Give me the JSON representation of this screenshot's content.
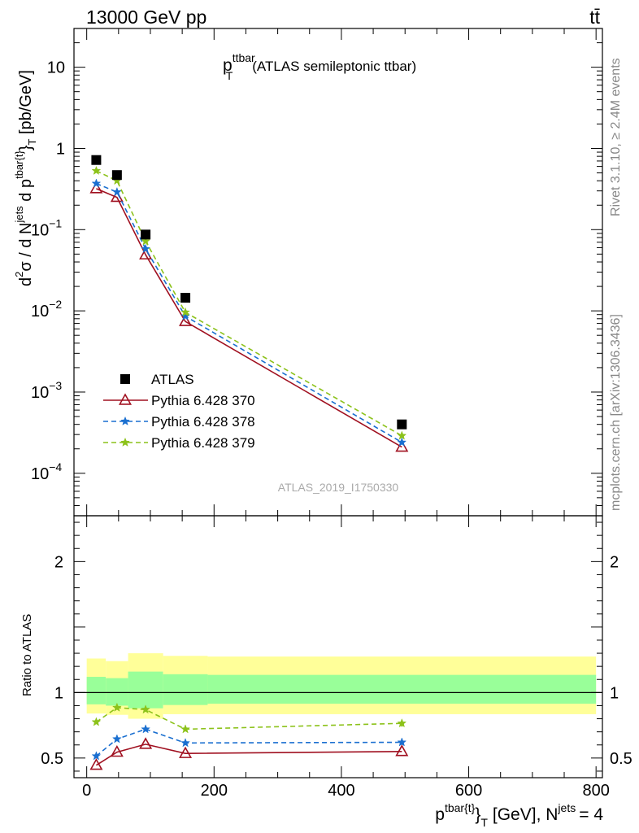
{
  "header": {
    "left": "13000 GeV pp",
    "right": "tt̄"
  },
  "side_labels": {
    "rivet": "Rivet 3.1.10, ≥ 2.4M events",
    "mcplots": "mcplots.cern.ch [arXiv:1306.3436]"
  },
  "chart_data": {
    "type": "line",
    "title": {
      "main": "p",
      "sup": "ttbar",
      "sub": "T",
      "rest": "(ATLAS semileptonic ttbar)"
    },
    "watermark": "ATLAS_2019_I1750330",
    "xlabel": {
      "p": "p",
      "sup": "tbar{t}",
      "brace": "}",
      "sub": "T",
      "rest": "[GeV], N",
      "sup2": "jets",
      "rest2": "= 4"
    },
    "ylabel_main": {
      "a": "d",
      "s1": "2",
      "b": "σ  /  d N",
      "s2": "jets",
      "c": " d p",
      "s3": "tbar{t}",
      "d": "}",
      "s4": "T",
      "e": " [pb/GeV]"
    },
    "ylabel_ratio": "Ratio to ATLAS",
    "xlim": [
      -20,
      810
    ],
    "ylim_main": [
      3e-05,
      30
    ],
    "yscale_main": "log",
    "ylim_ratio": [
      0.35,
      2.35
    ],
    "x_ticks": [
      0,
      200,
      400,
      600,
      800
    ],
    "x_tick_labels": [
      "0",
      "200",
      "400",
      "600",
      "800"
    ],
    "main_y_ticks": [
      0.0001,
      0.001,
      0.01,
      0.1,
      1,
      10
    ],
    "main_y_tick_labels": [
      {
        "base": "10",
        "exp": "−4"
      },
      {
        "base": "10",
        "exp": "−3"
      },
      {
        "base": "10",
        "exp": "−2"
      },
      {
        "base": "10",
        "exp": "−1"
      },
      {
        "base": "1",
        "exp": ""
      },
      {
        "base": "10",
        "exp": ""
      }
    ],
    "ratio_y_ticks": [
      0.5,
      1,
      2
    ],
    "ratio_y_tick_labels": [
      "0.5",
      "1",
      "2"
    ],
    "legend_position": "lower-left",
    "data": {
      "name": "ATLAS",
      "x": [
        15,
        47.5,
        92.5,
        155,
        495
      ],
      "y": [
        0.72,
        0.47,
        0.087,
        0.0145,
        0.0004
      ],
      "color": "#000000"
    },
    "series": [
      {
        "name": "Pythia 6.428 370",
        "color": "#a01020",
        "marker": "triangle",
        "dash": "",
        "y": [
          0.32,
          0.25,
          0.049,
          0.0074,
          0.00021
        ],
        "ratio": [
          0.445,
          0.545,
          0.605,
          0.535,
          0.55
        ],
        "ratio_err": [
          0,
          0,
          0,
          0,
          0
        ]
      },
      {
        "name": "Pythia 6.428 378",
        "color": "#1a6fd0",
        "marker": "star",
        "dash": "6,4",
        "y": [
          0.37,
          0.29,
          0.058,
          0.0086,
          0.00024
        ],
        "ratio": [
          0.515,
          0.645,
          0.72,
          0.615,
          0.62
        ],
        "ratio_err": [
          0,
          0,
          0,
          0,
          0.02
        ]
      },
      {
        "name": "Pythia 6.428 379",
        "color": "#8cc21a",
        "marker": "star",
        "dash": "6,4",
        "y": [
          0.53,
          0.4,
          0.072,
          0.0096,
          0.00029
        ],
        "ratio": [
          0.775,
          0.885,
          0.87,
          0.72,
          0.765
        ],
        "ratio_err": [
          0,
          0,
          0,
          0,
          0.025
        ]
      }
    ],
    "bins": [
      {
        "lo": 0,
        "hi": 30,
        "y_lo": 0.84,
        "y_hi": 1.26,
        "g_lo": 0.91,
        "g_hi": 1.12
      },
      {
        "lo": 30,
        "hi": 65,
        "y_lo": 0.83,
        "y_hi": 1.24,
        "g_lo": 0.9,
        "g_hi": 1.11
      },
      {
        "lo": 65,
        "hi": 120,
        "y_lo": 0.8,
        "y_hi": 1.3,
        "g_lo": 0.88,
        "g_hi": 1.16
      },
      {
        "lo": 120,
        "hi": 190,
        "y_lo": 0.835,
        "y_hi": 1.28,
        "g_lo": 0.905,
        "g_hi": 1.14
      },
      {
        "lo": 190,
        "hi": 800,
        "y_lo": 0.835,
        "y_hi": 1.275,
        "g_lo": 0.915,
        "g_hi": 1.135
      }
    ],
    "band_colors": {
      "outer": "#ffff99",
      "inner": "#99ff99"
    }
  }
}
